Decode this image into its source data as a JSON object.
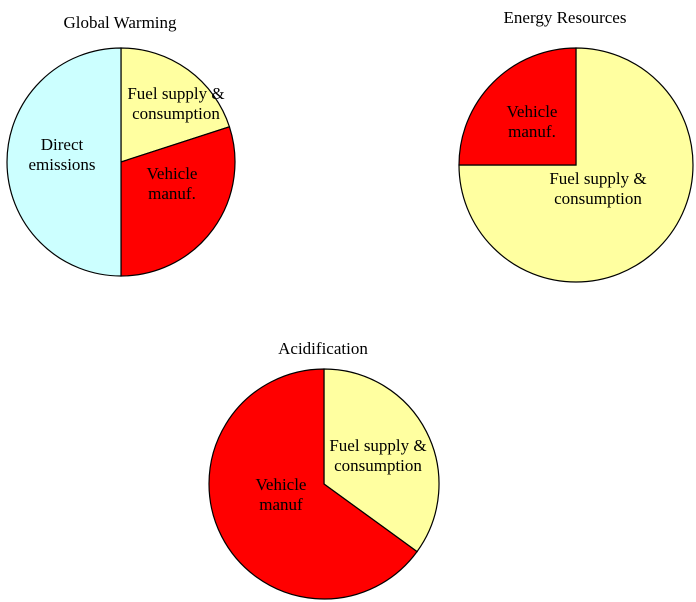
{
  "chart_data": [
    {
      "type": "pie",
      "title": "Global Warming",
      "slices": [
        {
          "label": [
            "Fuel supply &",
            "consumption"
          ],
          "value": 20,
          "color": "#ffffa0"
        },
        {
          "label": [
            "Vehicle",
            "manuf."
          ],
          "value": 30,
          "color": "#ff0000"
        },
        {
          "label": [
            "Direct",
            "emissions"
          ],
          "value": 50,
          "color": "#ccffff"
        }
      ]
    },
    {
      "type": "pie",
      "title": "Energy Resources",
      "slices": [
        {
          "label": [
            "Fuel supply &",
            "consumption"
          ],
          "value": 75,
          "color": "#ffffa0"
        },
        {
          "label": [
            "Vehicle",
            "manuf."
          ],
          "value": 25,
          "color": "#ff0000"
        }
      ]
    },
    {
      "type": "pie",
      "title": "Acidification",
      "slices": [
        {
          "label": [
            "Fuel supply &",
            "consumption"
          ],
          "value": 35,
          "color": "#ffffa0"
        },
        {
          "label": [
            "Vehicle",
            "manuf"
          ],
          "value": 65,
          "color": "#ff0000"
        }
      ]
    }
  ]
}
